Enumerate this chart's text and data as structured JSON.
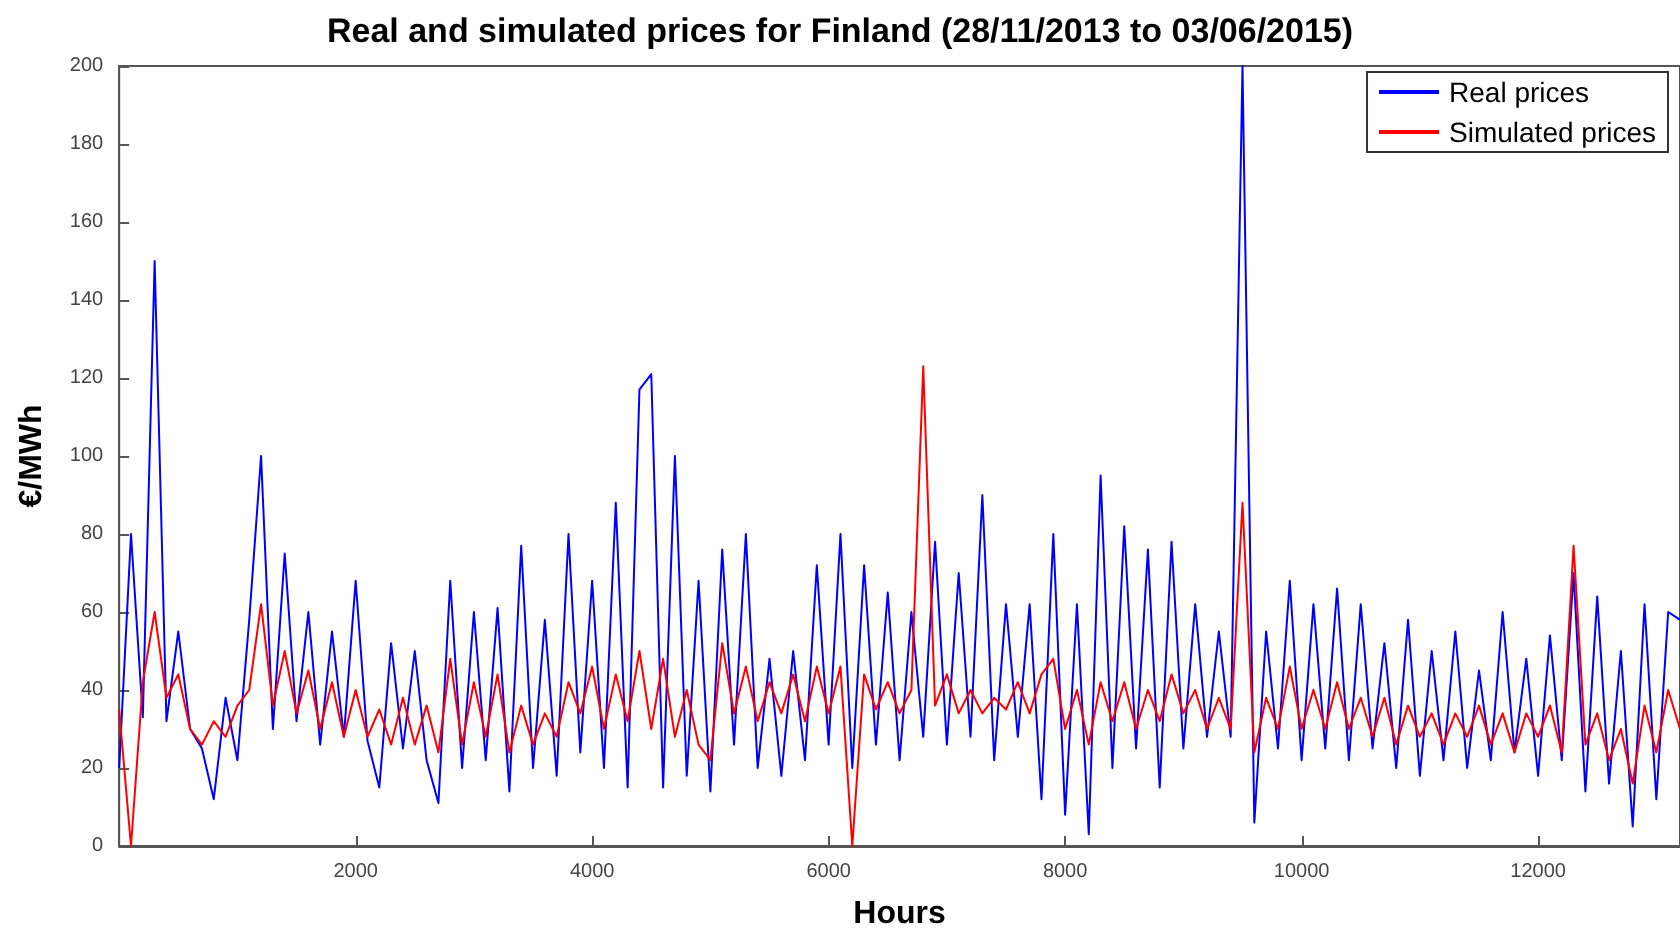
{
  "chart_data": {
    "type": "line",
    "title": "Real and simulated prices for Finland (28/11/2013 to 03/06/2015)",
    "xlabel": "Hours",
    "ylabel": "€/MWh",
    "x": [
      0,
      100,
      200,
      300,
      400,
      500,
      600,
      700,
      800,
      900,
      1000,
      1100,
      1200,
      1300,
      1400,
      1500,
      1600,
      1700,
      1800,
      1900,
      2000,
      2100,
      2200,
      2300,
      2400,
      2500,
      2600,
      2700,
      2800,
      2900,
      3000,
      3100,
      3200,
      3300,
      3400,
      3500,
      3600,
      3700,
      3800,
      3900,
      4000,
      4100,
      4200,
      4300,
      4400,
      4500,
      4600,
      4700,
      4800,
      4900,
      5000,
      5100,
      5200,
      5300,
      5400,
      5500,
      5600,
      5700,
      5800,
      5900,
      6000,
      6100,
      6200,
      6300,
      6400,
      6500,
      6600,
      6700,
      6800,
      6900,
      7000,
      7100,
      7200,
      7300,
      7400,
      7500,
      7600,
      7700,
      7800,
      7900,
      8000,
      8100,
      8200,
      8300,
      8400,
      8500,
      8600,
      8700,
      8800,
      8900,
      9000,
      9100,
      9200,
      9300,
      9400,
      9500,
      9600,
      9700,
      9800,
      9900,
      10000,
      10100,
      10200,
      10300,
      10400,
      10500,
      10600,
      10700,
      10800,
      10900,
      11000,
      11100,
      11200,
      11300,
      11400,
      11500,
      11600,
      11700,
      11800,
      11900,
      12000,
      12100,
      12200,
      12300,
      12400,
      12500,
      12600,
      12700,
      12800,
      12900,
      13000,
      13100,
      13200
    ],
    "series": [
      {
        "name": "Real prices",
        "color": "#0000ff",
        "values": [
          20,
          80,
          33,
          150,
          32,
          55,
          30,
          25,
          12,
          38,
          22,
          58,
          100,
          30,
          75,
          32,
          60,
          26,
          55,
          28,
          68,
          27,
          15,
          52,
          25,
          50,
          22,
          11,
          68,
          20,
          60,
          22,
          61,
          14,
          77,
          20,
          58,
          18,
          80,
          24,
          68,
          20,
          88,
          15,
          117,
          121,
          15,
          100,
          18,
          68,
          14,
          76,
          26,
          80,
          20,
          48,
          18,
          50,
          22,
          72,
          26,
          80,
          20,
          72,
          26,
          65,
          22,
          60,
          28,
          78,
          26,
          70,
          28,
          90,
          22,
          62,
          28,
          62,
          12,
          80,
          8,
          62,
          3,
          95,
          20,
          82,
          25,
          76,
          15,
          78,
          25,
          62,
          28,
          55,
          28,
          200,
          6,
          55,
          25,
          68,
          22,
          62,
          25,
          66,
          22,
          62,
          25,
          52,
          20,
          58,
          18,
          50,
          22,
          55,
          20,
          45,
          22,
          60,
          24,
          48,
          18,
          54,
          22,
          70,
          14,
          64,
          16,
          50,
          5,
          62,
          12,
          60,
          58
        ]
      },
      {
        "name": "Simulated prices",
        "color": "#ff0000",
        "values": [
          35,
          0,
          42,
          60,
          38,
          44,
          30,
          26,
          32,
          28,
          36,
          40,
          62,
          36,
          50,
          34,
          45,
          30,
          42,
          28,
          40,
          28,
          35,
          26,
          38,
          26,
          36,
          24,
          48,
          26,
          42,
          28,
          44,
          24,
          36,
          26,
          34,
          28,
          42,
          34,
          46,
          30,
          44,
          32,
          50,
          30,
          48,
          28,
          40,
          26,
          22,
          52,
          34,
          46,
          32,
          42,
          34,
          44,
          32,
          46,
          34,
          46,
          0,
          44,
          35,
          42,
          34,
          40,
          123,
          36,
          44,
          34,
          40,
          34,
          38,
          35,
          42,
          34,
          44,
          48,
          30,
          40,
          26,
          42,
          32,
          42,
          30,
          40,
          32,
          44,
          34,
          40,
          30,
          38,
          30,
          88,
          24,
          38,
          30,
          46,
          30,
          40,
          30,
          42,
          30,
          38,
          28,
          38,
          26,
          36,
          28,
          34,
          26,
          34,
          28,
          36,
          26,
          34,
          24,
          34,
          28,
          36,
          24,
          77,
          26,
          34,
          22,
          30,
          16,
          36,
          24,
          40,
          30
        ]
      }
    ],
    "xlim": [
      0,
      13200
    ],
    "xticks": [
      2000,
      4000,
      6000,
      8000,
      10000,
      12000
    ],
    "ylim": [
      0,
      200
    ],
    "yticks": [
      0,
      20,
      40,
      60,
      80,
      100,
      120,
      140,
      160,
      180,
      200
    ],
    "legend": "top right",
    "line_style": "solid",
    "marker": "none"
  }
}
